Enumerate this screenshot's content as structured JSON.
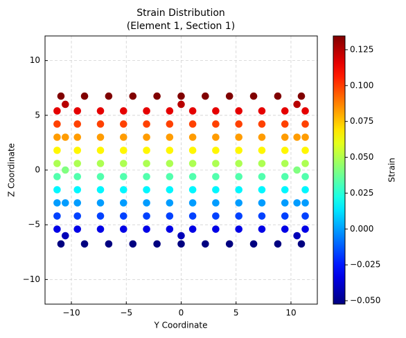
{
  "chart_data": {
    "type": "scatter",
    "title": [
      "Strain Distribution",
      "(Element 1, Section 1)"
    ],
    "xlabel": "Y Coordinate",
    "ylabel": "Z Coordinate",
    "colorbar_label": "Strain",
    "cmap": "jet",
    "grid": true,
    "xlim": [
      -12.4,
      12.4
    ],
    "ylim": [
      -12.25,
      12.25
    ],
    "clim": [
      -0.0524,
      0.1346
    ],
    "xticks": [
      {
        "value": -10,
        "label": "−10"
      },
      {
        "value": -5,
        "label": "−5"
      },
      0,
      5,
      10
    ],
    "yticks": [
      {
        "value": -10,
        "label": "−10"
      },
      {
        "value": -5,
        "label": "−5"
      },
      0,
      5,
      10
    ],
    "cticks": [
      {
        "value": -0.05,
        "label": "−0.050"
      },
      {
        "value": -0.025,
        "label": "−0.025"
      },
      {
        "value": 0,
        "label": "0.000"
      },
      {
        "value": 0.025,
        "label": "0.025"
      },
      {
        "value": 0.05,
        "label": "0.050"
      },
      {
        "value": 0.075,
        "label": "0.075"
      },
      {
        "value": 0.1,
        "label": "0.100"
      },
      0.125
    ],
    "x": [
      -10.95,
      -8.8,
      -6.6,
      -4.4,
      -2.2,
      0,
      2.2,
      4.4,
      6.6,
      8.8,
      10.95,
      -10.55,
      0,
      10.55,
      -11.3,
      -9.45,
      -7.35,
      -5.25,
      -3.15,
      -1.05,
      1.05,
      3.15,
      5.25,
      7.35,
      9.45,
      11.3,
      -11.3,
      -9.45,
      -7.35,
      -5.25,
      -3.15,
      -1.05,
      1.05,
      3.15,
      5.25,
      7.35,
      9.45,
      11.3,
      -11.3,
      -9.45,
      -7.35,
      -5.25,
      -3.15,
      -1.05,
      1.05,
      3.15,
      5.25,
      7.35,
      9.45,
      11.3,
      -10.55,
      10.55,
      -11.3,
      -9.45,
      -7.35,
      -5.25,
      -3.15,
      -1.05,
      1.05,
      3.15,
      5.25,
      7.35,
      9.45,
      11.3,
      -11.3,
      -9.45,
      -7.35,
      -5.25,
      -3.15,
      -1.05,
      1.05,
      3.15,
      5.25,
      7.35,
      9.45,
      11.3,
      -10.55,
      10.55,
      -11.3,
      -9.45,
      -7.35,
      -5.25,
      -3.15,
      -1.05,
      1.05,
      3.15,
      5.25,
      7.35,
      9.45,
      11.3,
      -11.3,
      -9.45,
      -7.35,
      -5.25,
      -3.15,
      -1.05,
      1.05,
      3.15,
      5.25,
      7.35,
      9.45,
      11.3,
      -11.3,
      -9.45,
      -7.35,
      -5.25,
      -3.15,
      -1.05,
      1.05,
      3.15,
      5.25,
      7.35,
      9.45,
      11.3,
      -10.55,
      10.55,
      -11.3,
      -9.45,
      -7.35,
      -5.25,
      -3.15,
      -1.05,
      1.05,
      3.15,
      5.25,
      7.35,
      9.45,
      11.3,
      -11.3,
      -9.45,
      -7.35,
      -5.25,
      -3.15,
      -1.05,
      1.05,
      3.15,
      5.25,
      7.35,
      9.45,
      11.3,
      -10.55,
      0,
      10.55,
      -10.95,
      -8.8,
      -6.6,
      -4.4,
      -2.2,
      0,
      2.2,
      4.4,
      6.6,
      8.8,
      10.95
    ],
    "y": [
      6.75,
      6.75,
      6.75,
      6.75,
      6.75,
      6.75,
      6.75,
      6.75,
      6.75,
      6.75,
      6.75,
      6,
      6,
      6,
      5.4,
      5.4,
      5.4,
      5.4,
      5.4,
      5.4,
      5.4,
      5.4,
      5.4,
      5.4,
      5.4,
      5.4,
      4.2,
      4.2,
      4.2,
      4.2,
      4.2,
      4.2,
      4.2,
      4.2,
      4.2,
      4.2,
      4.2,
      4.2,
      3,
      3,
      3,
      3,
      3,
      3,
      3,
      3,
      3,
      3,
      3,
      3,
      3,
      3,
      1.8,
      1.8,
      1.8,
      1.8,
      1.8,
      1.8,
      1.8,
      1.8,
      1.8,
      1.8,
      1.8,
      1.8,
      0.6,
      0.6,
      0.6,
      0.6,
      0.6,
      0.6,
      0.6,
      0.6,
      0.6,
      0.6,
      0.6,
      0.6,
      0,
      0,
      -0.6,
      -0.6,
      -0.6,
      -0.6,
      -0.6,
      -0.6,
      -0.6,
      -0.6,
      -0.6,
      -0.6,
      -0.6,
      -0.6,
      -1.8,
      -1.8,
      -1.8,
      -1.8,
      -1.8,
      -1.8,
      -1.8,
      -1.8,
      -1.8,
      -1.8,
      -1.8,
      -1.8,
      -3,
      -3,
      -3,
      -3,
      -3,
      -3,
      -3,
      -3,
      -3,
      -3,
      -3,
      -3,
      -3,
      -3,
      -4.2,
      -4.2,
      -4.2,
      -4.2,
      -4.2,
      -4.2,
      -4.2,
      -4.2,
      -4.2,
      -4.2,
      -4.2,
      -4.2,
      -5.4,
      -5.4,
      -5.4,
      -5.4,
      -5.4,
      -5.4,
      -5.4,
      -5.4,
      -5.4,
      -5.4,
      -5.4,
      -5.4,
      -6,
      -6,
      -6,
      -6.75,
      -6.75,
      -6.75,
      -6.75,
      -6.75,
      -6.75,
      -6.75,
      -6.75,
      -6.75,
      -6.75,
      -6.75
    ],
    "values": [
      0.1346,
      0.1346,
      0.1346,
      0.1346,
      0.1346,
      0.1346,
      0.1346,
      0.1346,
      0.1346,
      0.1346,
      0.1346,
      0.1242,
      0.1242,
      0.1242,
      0.1159,
      0.1159,
      0.1159,
      0.1159,
      0.1159,
      0.1159,
      0.1159,
      0.1159,
      0.1159,
      0.1159,
      0.1159,
      0.1159,
      0.0993,
      0.0993,
      0.0993,
      0.0993,
      0.0993,
      0.0993,
      0.0993,
      0.0993,
      0.0993,
      0.0993,
      0.0993,
      0.0993,
      0.0827,
      0.0827,
      0.0827,
      0.0827,
      0.0827,
      0.0827,
      0.0827,
      0.0827,
      0.0827,
      0.0827,
      0.0827,
      0.0827,
      0.0827,
      0.0827,
      0.066,
      0.066,
      0.066,
      0.066,
      0.066,
      0.066,
      0.066,
      0.066,
      0.066,
      0.066,
      0.066,
      0.066,
      0.0494,
      0.0494,
      0.0494,
      0.0494,
      0.0494,
      0.0494,
      0.0494,
      0.0494,
      0.0494,
      0.0494,
      0.0494,
      0.0494,
      0.0411,
      0.0411,
      0.0328,
      0.0328,
      0.0328,
      0.0328,
      0.0328,
      0.0328,
      0.0328,
      0.0328,
      0.0328,
      0.0328,
      0.0328,
      0.0328,
      0.0162,
      0.0162,
      0.0162,
      0.0162,
      0.0162,
      0.0162,
      0.0162,
      0.0162,
      0.0162,
      0.0162,
      0.0162,
      0.0162,
      -0.0005,
      -0.0005,
      -0.0005,
      -0.0005,
      -0.0005,
      -0.0005,
      -0.0005,
      -0.0005,
      -0.0005,
      -0.0005,
      -0.0005,
      -0.0005,
      -0.0005,
      -0.0005,
      -0.0171,
      -0.0171,
      -0.0171,
      -0.0171,
      -0.0171,
      -0.0171,
      -0.0171,
      -0.0171,
      -0.0171,
      -0.0171,
      -0.0171,
      -0.0171,
      -0.0337,
      -0.0337,
      -0.0337,
      -0.0337,
      -0.0337,
      -0.0337,
      -0.0337,
      -0.0337,
      -0.0337,
      -0.0337,
      -0.0337,
      -0.0337,
      -0.042,
      -0.042,
      -0.042,
      -0.0524,
      -0.0524,
      -0.0524,
      -0.0524,
      -0.0524,
      -0.0524,
      -0.0524,
      -0.0524,
      -0.0524,
      -0.0524,
      -0.0524
    ]
  }
}
